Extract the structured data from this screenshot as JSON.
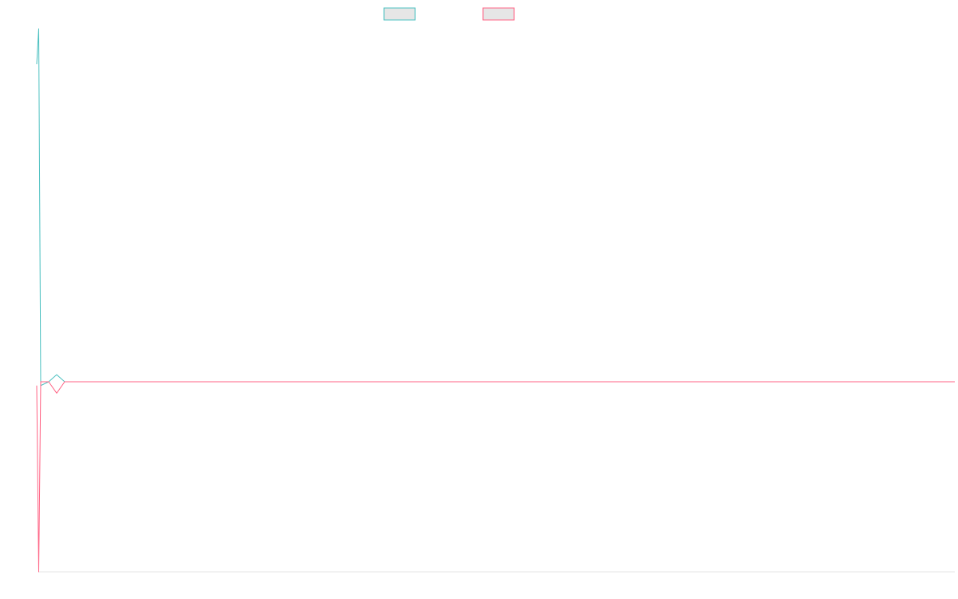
{
  "chart_data": {
    "type": "line",
    "x": [
      0,
      1,
      2,
      3,
      4,
      5,
      6,
      7,
      8,
      9,
      10,
      11,
      12,
      13,
      14,
      15,
      16,
      17,
      18,
      19,
      20,
      21,
      22,
      23,
      24,
      25,
      26,
      27,
      28,
      29,
      30,
      31,
      32,
      33,
      34,
      35,
      36,
      37,
      38,
      39,
      40,
      41,
      42,
      43,
      44,
      45,
      46,
      47,
      48,
      49,
      50
    ],
    "series": [
      {
        "name": "",
        "color": "#4bc0c0",
        "values": [
          0.9,
          1.0,
          -0.02,
          0.0,
          0.02,
          0.0,
          0.0,
          0.0,
          0.0,
          0.0,
          0.0,
          0.0,
          0.0,
          0.0,
          0.0,
          0.0,
          0.0,
          0.0,
          0.0,
          0.0,
          0.0,
          0.0,
          0.0,
          0.0,
          0.0,
          0.0,
          0.0,
          0.0,
          0.0,
          0.0,
          0.0,
          0.0,
          0.0,
          0.0,
          0.0,
          0.0,
          0.0,
          0.0,
          0.0,
          0.0,
          0.0,
          0.0,
          0.0,
          0.0,
          0.0,
          0.0,
          0.0,
          0.0,
          0.0,
          0.0,
          0.0
        ]
      },
      {
        "name": "",
        "color": "#ff6384",
        "values": [
          -0.02,
          -1.0,
          0.0,
          0.0,
          -0.06,
          0.0,
          0.0,
          0.0,
          0.0,
          0.0,
          0.0,
          0.0,
          0.0,
          0.0,
          0.0,
          0.0,
          0.0,
          0.0,
          0.0,
          0.0,
          0.0,
          0.0,
          0.0,
          0.0,
          0.0,
          0.0,
          0.0,
          0.0,
          0.0,
          0.0,
          0.0,
          0.0,
          0.0,
          0.0,
          0.0,
          0.0,
          0.0,
          0.0,
          0.0,
          0.0,
          0.0,
          0.0,
          0.0,
          0.0,
          0.0,
          0.0,
          0.0,
          0.0,
          0.0,
          0.0,
          0.0
        ]
      }
    ],
    "ylim": [
      -1.0,
      1.0
    ],
    "xlim": [
      0,
      50
    ],
    "legend_position": "top-center",
    "grid": false,
    "title": "",
    "xlabel": "",
    "ylabel": ""
  }
}
